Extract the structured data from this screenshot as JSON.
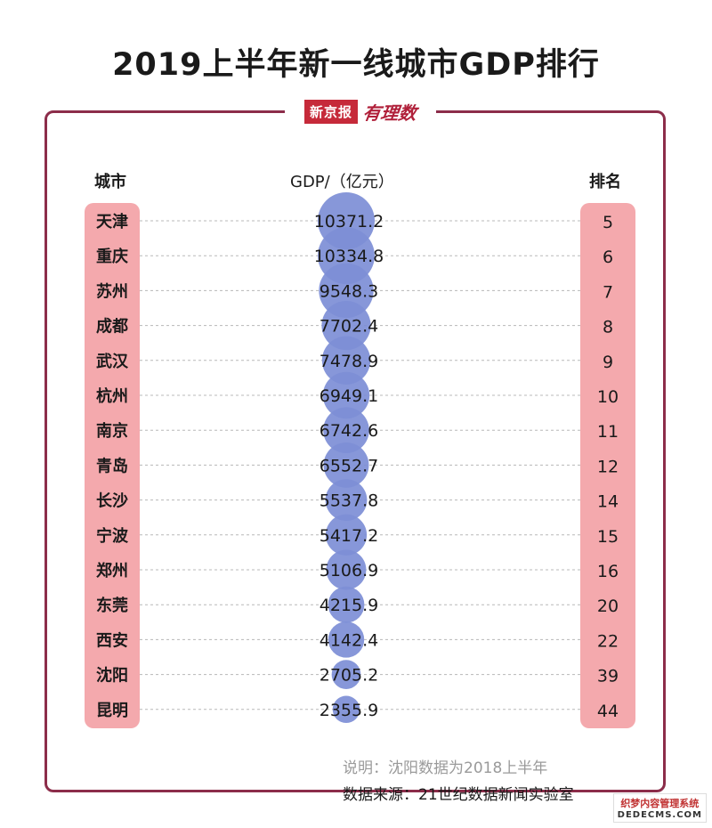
{
  "title": "2019上半年新一线城市GDP排行",
  "brand": {
    "newspaper": "新京报",
    "section": "有理数"
  },
  "headers": {
    "city": "城市",
    "gdp": "GDP/（亿元）",
    "rank": "排名"
  },
  "colors": {
    "bubble": "#7d8ed6",
    "pill": "#f4a9ad",
    "frame": "#8c2d4a"
  },
  "chart_data": {
    "type": "table",
    "title": "2019上半年新一线城市GDP排行",
    "columns": [
      "城市",
      "GDP/（亿元）",
      "排名"
    ],
    "rows": [
      {
        "city": "天津",
        "gdp": 10371.2,
        "gdp_label": "10371.2",
        "rank": "5"
      },
      {
        "city": "重庆",
        "gdp": 10334.8,
        "gdp_label": "10334.8",
        "rank": "6"
      },
      {
        "city": "苏州",
        "gdp": 9548.3,
        "gdp_label": "9548.3",
        "rank": "7"
      },
      {
        "city": "成都",
        "gdp": 7702.4,
        "gdp_label": "7702.4",
        "rank": "8"
      },
      {
        "city": "武汉",
        "gdp": 7478.9,
        "gdp_label": "7478.9",
        "rank": "9"
      },
      {
        "city": "杭州",
        "gdp": 6949.1,
        "gdp_label": "6949.1",
        "rank": "10"
      },
      {
        "city": "南京",
        "gdp": 6742.6,
        "gdp_label": "6742.6",
        "rank": "11"
      },
      {
        "city": "青岛",
        "gdp": 6552.7,
        "gdp_label": "6552.7",
        "rank": "12"
      },
      {
        "city": "长沙",
        "gdp": 5537.8,
        "gdp_label": "5537.8",
        "rank": "14"
      },
      {
        "city": "宁波",
        "gdp": 5417.2,
        "gdp_label": "5417.2",
        "rank": "15"
      },
      {
        "city": "郑州",
        "gdp": 5106.9,
        "gdp_label": "5106.9",
        "rank": "16"
      },
      {
        "city": "东莞",
        "gdp": 4215.9,
        "gdp_label": "4215.9",
        "rank": "20"
      },
      {
        "city": "西安",
        "gdp": 4142.4,
        "gdp_label": "4142.4",
        "rank": "22"
      },
      {
        "city": "沈阳",
        "gdp": 2705.2,
        "gdp_label": "2705.2",
        "rank": "39"
      },
      {
        "city": "昆明",
        "gdp": 2355.9,
        "gdp_label": "2355.9",
        "rank": "44"
      }
    ]
  },
  "notes": {
    "note": "说明：沈阳数据为2018上半年",
    "source": "数据来源：21世纪数据新闻实验室"
  },
  "watermark": {
    "line1": "织梦内容管理系统",
    "line2": "DEDECMS.COM"
  }
}
